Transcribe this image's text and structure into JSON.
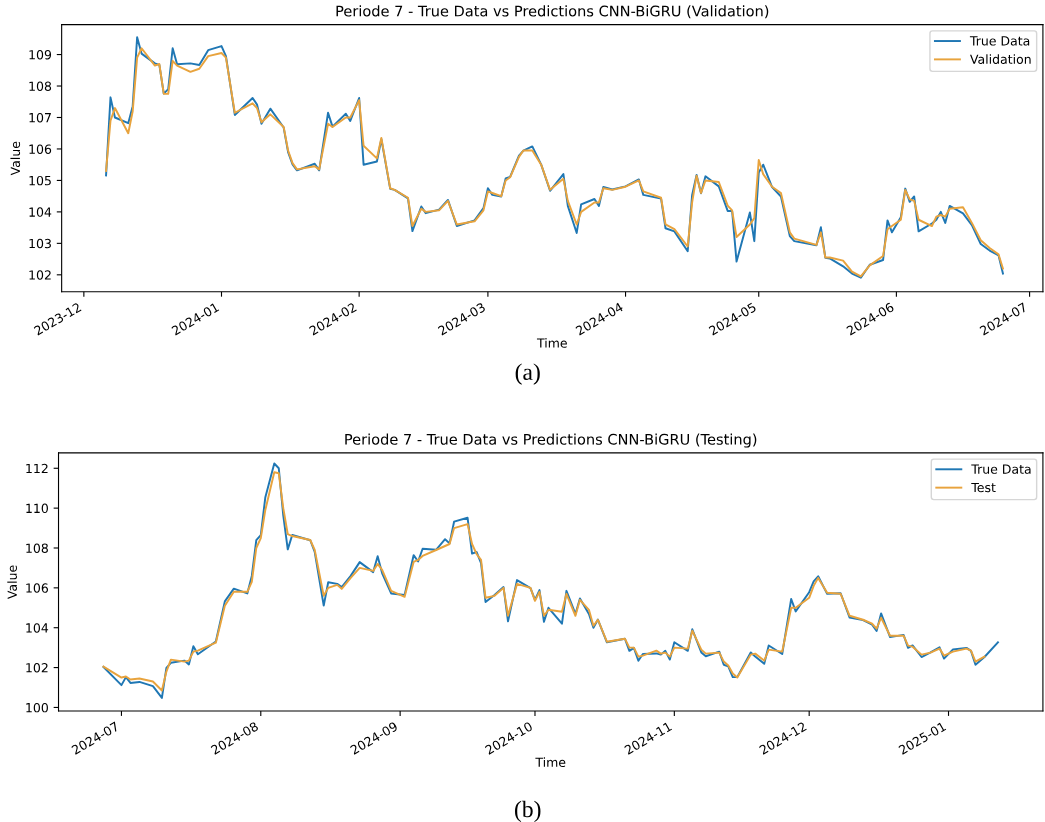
{
  "chart_data": [
    {
      "type": "line",
      "title": "Periode 7 - True Data vs Predictions CNN-BiGRU (Validation)",
      "xlabel": "Time",
      "ylabel": "Value",
      "annotations": [
        "(a)"
      ],
      "legend": "top right",
      "grid": false,
      "x": [
        "2023-12-06",
        "2023-12-07",
        "2023-12-08",
        "2023-12-11",
        "2023-12-12",
        "2023-12-13",
        "2023-12-14",
        "2023-12-17",
        "2023-12-18",
        "2023-12-19",
        "2023-12-20",
        "2023-12-21",
        "2023-12-22",
        "2023-12-25",
        "2023-12-27",
        "2023-12-29",
        "2024-01-01",
        "2024-01-02",
        "2024-01-04",
        "2024-01-08",
        "2024-01-09",
        "2024-01-10",
        "2024-01-12",
        "2024-01-15",
        "2024-01-16",
        "2024-01-17",
        "2024-01-18",
        "2024-01-22",
        "2024-01-23",
        "2024-01-25",
        "2024-01-26",
        "2024-01-29",
        "2024-01-30",
        "2024-02-01",
        "2024-02-02",
        "2024-02-05",
        "2024-02-06",
        "2024-02-08",
        "2024-02-09",
        "2024-02-12",
        "2024-02-13",
        "2024-02-15",
        "2024-02-16",
        "2024-02-19",
        "2024-02-21",
        "2024-02-23",
        "2024-02-27",
        "2024-02-29",
        "2024-03-01",
        "2024-03-02",
        "2024-03-04",
        "2024-03-05",
        "2024-03-06",
        "2024-03-08",
        "2024-03-09",
        "2024-03-11",
        "2024-03-13",
        "2024-03-15",
        "2024-03-18",
        "2024-03-19",
        "2024-03-21",
        "2024-03-22",
        "2024-03-25",
        "2024-03-26",
        "2024-03-27",
        "2024-03-29",
        "2024-04-01",
        "2024-04-04",
        "2024-04-05",
        "2024-04-09",
        "2024-04-10",
        "2024-04-12",
        "2024-04-15",
        "2024-04-16",
        "2024-04-17",
        "2024-04-18",
        "2024-04-19",
        "2024-04-22",
        "2024-04-24",
        "2024-04-25",
        "2024-04-26",
        "2024-04-29",
        "2024-04-30",
        "2024-05-01",
        "2024-05-02",
        "2024-05-04",
        "2024-05-06",
        "2024-05-08",
        "2024-05-09",
        "2024-05-14",
        "2024-05-15",
        "2024-05-16",
        "2024-05-17",
        "2024-05-20",
        "2024-05-22",
        "2024-05-24",
        "2024-05-26",
        "2024-05-29",
        "2024-05-30",
        "2024-05-31",
        "2024-06-02",
        "2024-06-03",
        "2024-06-04",
        "2024-06-05",
        "2024-06-06",
        "2024-06-09",
        "2024-06-10",
        "2024-06-11",
        "2024-06-12",
        "2024-06-13",
        "2024-06-16",
        "2024-06-18",
        "2024-06-20",
        "2024-06-22",
        "2024-06-24",
        "2024-06-25"
      ],
      "series": [
        {
          "name": "True Data",
          "color": "#1f77b4",
          "values": [
            105.16,
            107.64,
            107.0,
            106.82,
            107.36,
            109.55,
            109.03,
            108.72,
            108.67,
            107.76,
            107.9,
            109.2,
            108.69,
            108.72,
            108.67,
            109.14,
            109.27,
            108.95,
            107.08,
            107.62,
            107.41,
            106.8,
            107.28,
            106.68,
            105.9,
            105.51,
            105.32,
            105.53,
            105.32,
            107.15,
            106.71,
            107.12,
            106.89,
            107.62,
            105.5,
            105.6,
            106.31,
            104.73,
            104.7,
            104.43,
            103.39,
            104.17,
            103.96,
            104.07,
            104.38,
            103.55,
            103.73,
            104.12,
            104.75,
            104.54,
            104.49,
            105.06,
            105.11,
            105.79,
            105.95,
            106.08,
            105.5,
            104.67,
            105.2,
            104.19,
            103.33,
            104.24,
            104.41,
            104.19,
            104.79,
            104.71,
            104.81,
            105.03,
            104.54,
            104.42,
            103.48,
            103.38,
            102.75,
            104.54,
            105.17,
            104.59,
            105.13,
            104.81,
            104.03,
            104.03,
            102.42,
            103.98,
            103.07,
            105.25,
            105.5,
            104.79,
            104.49,
            103.23,
            103.07,
            102.94,
            103.51,
            102.54,
            102.52,
            102.27,
            102.04,
            101.91,
            102.32,
            102.47,
            103.73,
            103.35,
            103.83,
            104.74,
            104.32,
            104.49,
            103.38,
            103.63,
            103.75,
            104.0,
            103.65,
            104.19,
            103.95,
            103.58,
            102.98,
            102.77,
            102.62,
            102.04
          ]
        },
        {
          "name": "Validation",
          "color": "#e8a33d",
          "values": [
            105.3,
            106.9,
            107.3,
            106.5,
            107.2,
            108.9,
            109.2,
            108.65,
            108.7,
            107.75,
            107.75,
            108.8,
            108.65,
            108.45,
            108.55,
            108.95,
            109.05,
            108.9,
            107.15,
            107.45,
            107.3,
            106.85,
            107.1,
            106.7,
            105.95,
            105.55,
            105.35,
            105.45,
            105.35,
            106.8,
            106.7,
            107.0,
            107.0,
            107.55,
            106.1,
            105.7,
            106.35,
            104.75,
            104.7,
            104.45,
            103.55,
            104.1,
            104.0,
            104.05,
            104.35,
            103.6,
            103.7,
            104.05,
            104.65,
            104.6,
            104.5,
            105.0,
            105.1,
            105.75,
            105.95,
            105.95,
            105.5,
            104.7,
            105.05,
            104.35,
            103.6,
            104.0,
            104.3,
            104.3,
            104.75,
            104.7,
            104.8,
            105.0,
            104.65,
            104.45,
            103.6,
            103.45,
            102.9,
            104.3,
            105.15,
            104.6,
            105.0,
            104.95,
            104.2,
            104.05,
            103.2,
            103.6,
            103.8,
            105.65,
            105.2,
            104.8,
            104.6,
            103.35,
            103.15,
            102.95,
            103.35,
            102.55,
            102.55,
            102.45,
            102.1,
            101.95,
            102.3,
            102.6,
            103.45,
            103.55,
            103.75,
            104.7,
            104.4,
            104.35,
            103.75,
            103.55,
            103.85,
            103.9,
            103.85,
            104.1,
            104.15,
            103.65,
            103.1,
            102.85,
            102.65,
            102.2
          ]
        }
      ],
      "xlim": [
        "2023-11-26",
        "2024-07-04"
      ],
      "ylim": [
        101.46,
        109.95
      ],
      "xticks": [
        "2023-12",
        "2024-01",
        "2024-02",
        "2024-03",
        "2024-04",
        "2024-05",
        "2024-06",
        "2024-07"
      ],
      "yticks": [
        102,
        103,
        104,
        105,
        106,
        107,
        108,
        109
      ]
    },
    {
      "type": "line",
      "title": "Periode 7 - True Data vs Predictions CNN-BiGRU (Testing)",
      "xlabel": "Time",
      "ylabel": "Value",
      "annotations": [
        "(b)"
      ],
      "legend": "top right",
      "grid": false,
      "x": [
        "2024-06-27",
        "2024-07-01",
        "2024-07-02",
        "2024-07-03",
        "2024-07-05",
        "2024-07-08",
        "2024-07-10",
        "2024-07-11",
        "2024-07-12",
        "2024-07-15",
        "2024-07-16",
        "2024-07-17",
        "2024-07-18",
        "2024-07-22",
        "2024-07-24",
        "2024-07-26",
        "2024-07-29",
        "2024-07-30",
        "2024-07-31",
        "2024-08-01",
        "2024-08-02",
        "2024-08-04",
        "2024-08-05",
        "2024-08-06",
        "2024-08-07",
        "2024-08-08",
        "2024-08-12",
        "2024-08-13",
        "2024-08-15",
        "2024-08-16",
        "2024-08-18",
        "2024-08-19",
        "2024-08-21",
        "2024-08-23",
        "2024-08-26",
        "2024-08-27",
        "2024-08-28",
        "2024-08-30",
        "2024-09-02",
        "2024-09-04",
        "2024-09-05",
        "2024-09-06",
        "2024-09-09",
        "2024-09-11",
        "2024-09-12",
        "2024-09-13",
        "2024-09-16",
        "2024-09-17",
        "2024-09-18",
        "2024-09-19",
        "2024-09-20",
        "2024-09-22",
        "2024-09-24",
        "2024-09-25",
        "2024-09-27",
        "2024-09-30",
        "2024-10-01",
        "2024-10-02",
        "2024-10-03",
        "2024-10-04",
        "2024-10-07",
        "2024-10-08",
        "2024-10-10",
        "2024-10-11",
        "2024-10-13",
        "2024-10-14",
        "2024-10-15",
        "2024-10-17",
        "2024-10-21",
        "2024-10-22",
        "2024-10-23",
        "2024-10-24",
        "2024-10-25",
        "2024-10-28",
        "2024-10-29",
        "2024-10-30",
        "2024-10-31",
        "2024-11-01",
        "2024-11-04",
        "2024-11-05",
        "2024-11-07",
        "2024-11-08",
        "2024-11-11",
        "2024-11-12",
        "2024-11-13",
        "2024-11-14",
        "2024-11-15",
        "2024-11-18",
        "2024-11-19",
        "2024-11-21",
        "2024-11-22",
        "2024-11-25",
        "2024-11-27",
        "2024-11-28",
        "2024-12-01",
        "2024-12-02",
        "2024-12-03",
        "2024-12-05",
        "2024-12-08",
        "2024-12-10",
        "2024-12-13",
        "2024-12-15",
        "2024-12-16",
        "2024-12-17",
        "2024-12-19",
        "2024-12-22",
        "2024-12-23",
        "2024-12-24",
        "2024-12-26",
        "2024-12-28",
        "2024-12-30",
        "2024-12-31",
        "2025-01-02",
        "2025-01-05",
        "2025-01-06",
        "2025-01-07",
        "2025-01-09",
        "2025-01-12"
      ],
      "series": [
        {
          "name": "True Data",
          "color": "#1f77b4",
          "values": [
            102.03,
            101.12,
            101.52,
            101.23,
            101.28,
            101.07,
            100.48,
            101.98,
            102.24,
            102.35,
            102.16,
            103.07,
            102.67,
            103.31,
            105.32,
            105.96,
            105.72,
            106.6,
            108.39,
            108.65,
            110.53,
            112.24,
            112.0,
            109.64,
            107.93,
            108.65,
            108.39,
            107.8,
            105.11,
            106.28,
            106.2,
            106.04,
            106.6,
            107.29,
            106.79,
            107.59,
            106.73,
            105.72,
            105.64,
            107.64,
            107.32,
            107.96,
            107.91,
            108.44,
            108.23,
            109.32,
            109.52,
            107.72,
            107.8,
            107.24,
            105.29,
            105.64,
            106.04,
            104.32,
            106.39,
            105.99,
            105.4,
            105.89,
            104.3,
            105.0,
            104.2,
            105.85,
            104.69,
            105.47,
            104.69,
            104.0,
            104.41,
            103.27,
            103.45,
            102.84,
            102.99,
            102.34,
            102.68,
            102.71,
            102.65,
            102.84,
            102.4,
            103.27,
            102.84,
            103.92,
            102.76,
            102.57,
            102.8,
            102.14,
            102.06,
            101.52,
            101.52,
            102.76,
            102.56,
            102.19,
            103.11,
            102.68,
            105.44,
            104.82,
            105.78,
            106.32,
            106.58,
            105.7,
            105.73,
            104.51,
            104.38,
            104.15,
            103.84,
            104.72,
            103.53,
            103.64,
            102.99,
            103.11,
            102.53,
            102.76,
            103.02,
            102.45,
            102.91,
            102.99,
            102.84,
            102.14,
            102.53,
            103.27
          ]
        },
        {
          "name": "Test",
          "color": "#e8a33d",
          "values": [
            102.05,
            101.5,
            101.55,
            101.4,
            101.45,
            101.3,
            100.85,
            101.8,
            102.4,
            102.3,
            102.35,
            102.8,
            102.85,
            103.25,
            105.1,
            105.8,
            105.8,
            106.3,
            108.0,
            108.5,
            109.9,
            111.8,
            111.75,
            110.0,
            108.7,
            108.6,
            108.4,
            107.9,
            105.6,
            106.0,
            106.15,
            105.95,
            106.5,
            107.0,
            106.85,
            107.2,
            106.9,
            105.85,
            105.55,
            107.3,
            107.4,
            107.6,
            107.9,
            108.1,
            108.2,
            109.0,
            109.2,
            108.2,
            107.7,
            107.4,
            105.5,
            105.6,
            106.0,
            104.6,
            106.2,
            106.0,
            105.35,
            105.8,
            104.6,
            104.9,
            104.8,
            105.7,
            104.6,
            105.4,
            104.9,
            104.1,
            104.4,
            103.3,
            103.45,
            103.0,
            103.0,
            102.55,
            102.6,
            102.85,
            102.7,
            102.75,
            102.55,
            103.0,
            102.95,
            103.85,
            102.9,
            102.7,
            102.75,
            102.3,
            102.1,
            101.7,
            101.5,
            102.65,
            102.7,
            102.35,
            102.9,
            102.8,
            105.0,
            105.0,
            105.5,
            106.1,
            106.5,
            105.75,
            105.7,
            104.6,
            104.4,
            104.2,
            103.95,
            104.5,
            103.6,
            103.6,
            103.1,
            103.05,
            102.65,
            102.75,
            102.95,
            102.6,
            102.8,
            102.95,
            102.85,
            102.3,
            102.55,
            null
          ]
        }
      ],
      "xlim": [
        "2024-06-17",
        "2025-01-22"
      ],
      "ylim": [
        99.82,
        112.77
      ],
      "xticks": [
        "2024-07",
        "2024-08",
        "2024-09",
        "2024-10",
        "2024-11",
        "2024-12",
        "2025-01"
      ],
      "yticks": [
        100,
        102,
        104,
        106,
        108,
        110,
        112
      ]
    }
  ]
}
